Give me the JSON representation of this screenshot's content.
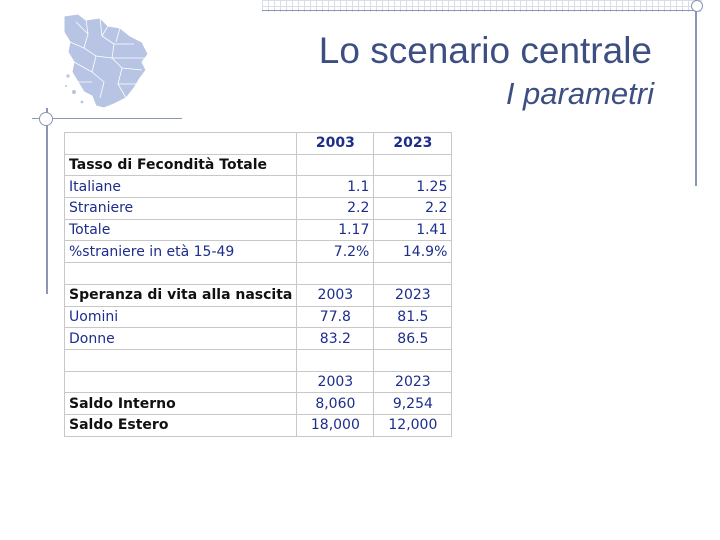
{
  "slide": {
    "title": "Lo scenario centrale",
    "subtitle": "I parametri"
  },
  "table": {
    "header_years": [
      "2003",
      "2023"
    ],
    "fecondita": {
      "heading": "Tasso di Fecondità Totale",
      "rows": [
        {
          "label": "Italiane",
          "v2003": "1.1",
          "v2023": "1.25"
        },
        {
          "label": "Straniere",
          "v2003": "2.2",
          "v2023": "2.2"
        },
        {
          "label": "Totale",
          "v2003": "1.17",
          "v2023": "1.41"
        },
        {
          "label": "%straniere in età 15-49",
          "v2003": "7.2%",
          "v2023": "14.9%"
        }
      ]
    },
    "speranza": {
      "heading": "Speranza di vita alla nascita",
      "y2003": "2003",
      "y2023": "2023",
      "rows": [
        {
          "label": "Uomini",
          "v2003": "77.8",
          "v2023": "81.5"
        },
        {
          "label": "Donne",
          "v2003": "83.2",
          "v2023": "86.5"
        }
      ]
    },
    "saldo": {
      "y2003": "2003",
      "y2023": "2023",
      "rows": [
        {
          "label": "Saldo Interno",
          "v2003": "8,060",
          "v2023": "9,254"
        },
        {
          "label": "Saldo Estero",
          "v2003": "18,000",
          "v2023": "12,000"
        }
      ]
    }
  },
  "colors": {
    "accent": "#3d4f82",
    "table_text": "#1c2d8c",
    "map_fill": "#b8c4e4"
  },
  "icons": {
    "map": "tuscany-map-icon"
  }
}
